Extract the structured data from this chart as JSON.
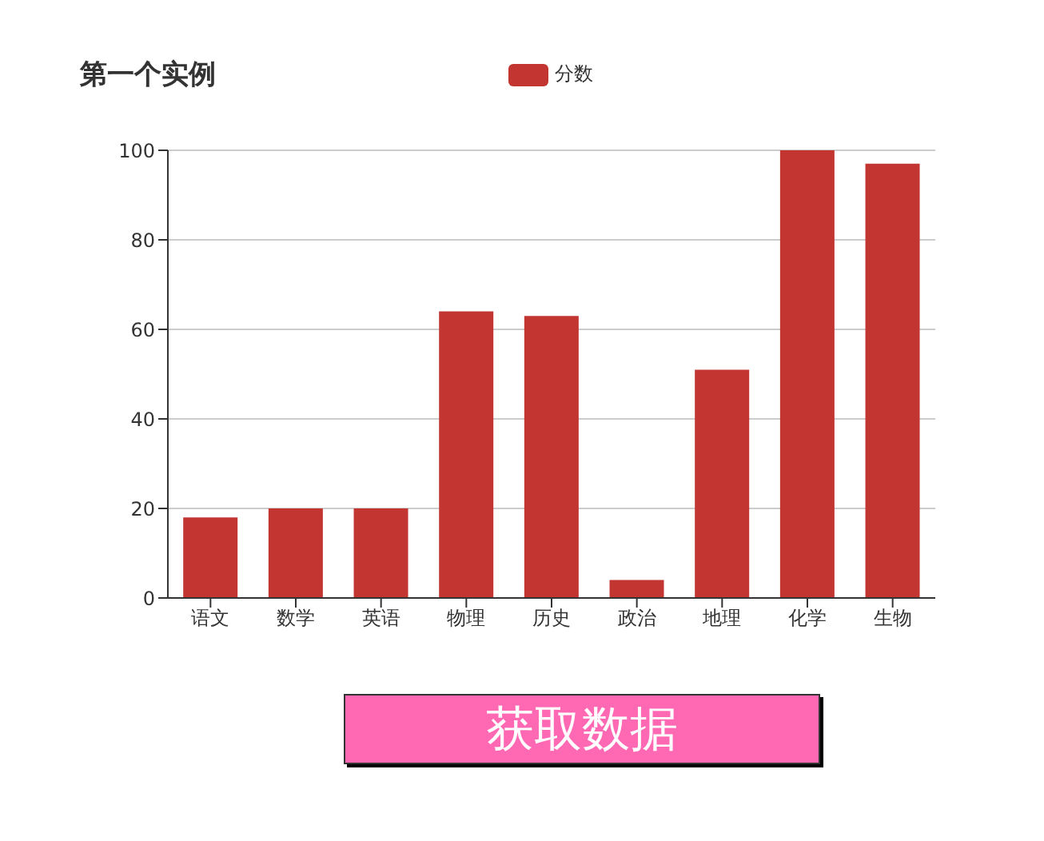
{
  "chart_data": {
    "type": "bar",
    "title": "第一个实例",
    "categories": [
      "语文",
      "数学",
      "英语",
      "物理",
      "历史",
      "政治",
      "地理",
      "化学",
      "生物"
    ],
    "series": [
      {
        "name": "分数",
        "color": "#c23531",
        "values": [
          18,
          20,
          20,
          64,
          63,
          4,
          51,
          100,
          97
        ]
      }
    ],
    "ylim": [
      0,
      100
    ],
    "yticks": [
      0,
      20,
      40,
      60,
      80,
      100
    ],
    "grid": "y",
    "legend": "top",
    "annotations": [
      "获取数据"
    ]
  }
}
